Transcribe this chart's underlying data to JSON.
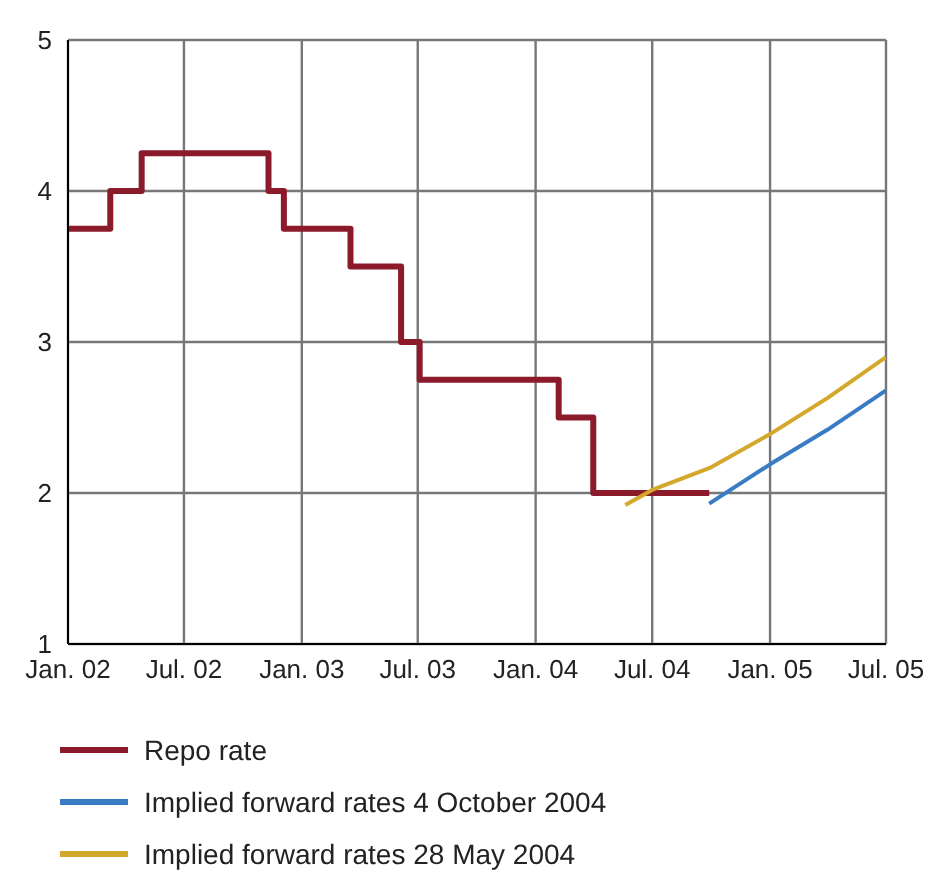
{
  "chart_data": {
    "type": "line",
    "xlim": [
      "2002-01-01",
      "2005-07-01"
    ],
    "xticks": [
      {
        "value": "2002-01-01",
        "label": "Jan. 02"
      },
      {
        "value": "2002-07-01",
        "label": "Jul. 02"
      },
      {
        "value": "2003-01-01",
        "label": "Jan. 03"
      },
      {
        "value": "2003-07-01",
        "label": "Jul. 03"
      },
      {
        "value": "2004-01-01",
        "label": "Jan. 04"
      },
      {
        "value": "2004-07-01",
        "label": "Jul. 04"
      },
      {
        "value": "2005-01-01",
        "label": "Jan. 05"
      },
      {
        "value": "2005-07-01",
        "label": "Jul. 05"
      }
    ],
    "ylim": [
      1,
      5
    ],
    "yticks": [
      1,
      2,
      3,
      4,
      5
    ],
    "grid": true,
    "legend": "bottom",
    "marker": "none",
    "line_style": "solid",
    "series": [
      {
        "name": "Repo rate",
        "type": "step",
        "color": "#8b1a2b",
        "x": [
          "2002-01-01",
          "2002-03-08",
          "2002-04-26",
          "2002-11-10",
          "2002-12-04",
          "2003-03-18",
          "2003-06-05",
          "2003-07-04",
          "2004-02-06",
          "2004-03-31",
          "2004-09-28"
        ],
        "values": [
          3.75,
          4.0,
          4.25,
          4.0,
          3.75,
          3.5,
          3.0,
          2.75,
          2.5,
          2.0,
          2.0
        ]
      },
      {
        "name": "Implied forward rates 4 October 2004",
        "type": "line",
        "color": "#3a7cc4",
        "x": [
          "2004-09-28",
          "2005-01-01",
          "2005-04-01",
          "2005-07-01"
        ],
        "values": [
          1.93,
          2.19,
          2.42,
          2.68
        ]
      },
      {
        "name": "Implied forward rates 28 May 2004",
        "type": "line",
        "color": "#d4a82a",
        "x": [
          "2004-05-20",
          "2004-07-01",
          "2004-10-01",
          "2005-01-01",
          "2005-04-01",
          "2005-07-01"
        ],
        "values": [
          1.92,
          2.02,
          2.17,
          2.39,
          2.63,
          2.9
        ]
      }
    ]
  }
}
